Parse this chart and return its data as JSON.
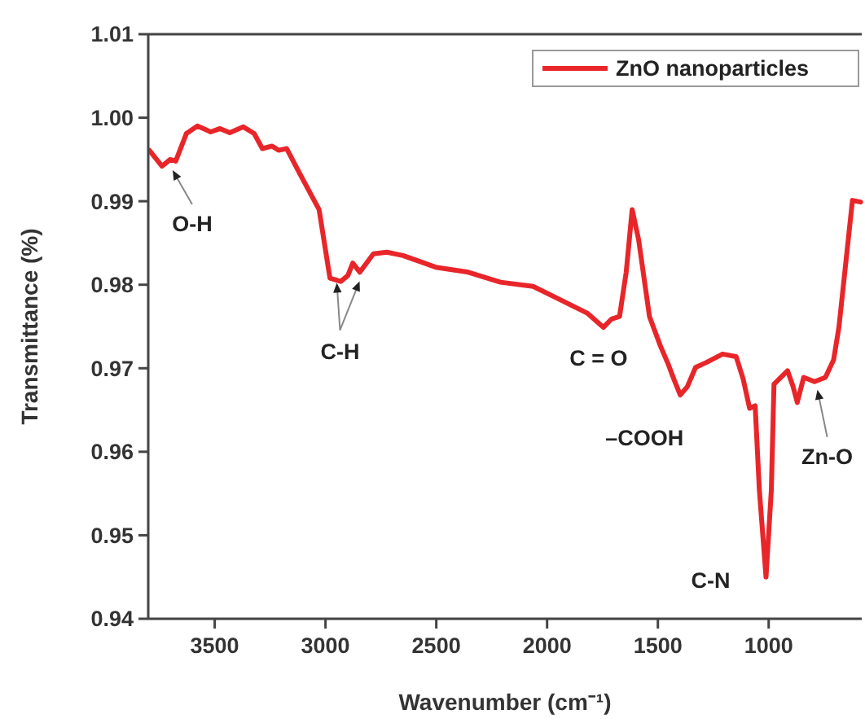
{
  "chart_data": {
    "type": "line",
    "xlabel": "Wavenumber (cm⁻¹)",
    "ylabel": "Transmittance (%)",
    "x": [
      3795,
      3738,
      3701,
      3676,
      3628,
      3578,
      3518,
      3476,
      3432,
      3371,
      3322,
      3285,
      3241,
      3212,
      3175,
      3114,
      3029,
      2980,
      2931,
      2899,
      2877,
      2845,
      2784,
      2723,
      2650,
      2503,
      2356,
      2210,
      2063,
      1941,
      1819,
      1746,
      1709,
      1673,
      1643,
      1616,
      1587,
      1538,
      1489,
      1452,
      1428,
      1399,
      1367,
      1330,
      1281,
      1208,
      1147,
      1115,
      1086,
      1061,
      1042,
      1012,
      988,
      976,
      915,
      890,
      871,
      842,
      793,
      744,
      707,
      683,
      646,
      622,
      585
    ],
    "series": [
      {
        "name": "ZnO nanoparticles",
        "color": "#e8262a",
        "values": [
          0.9961,
          0.9942,
          0.995,
          0.9948,
          0.9981,
          0.999,
          0.9983,
          0.9987,
          0.9982,
          0.9989,
          0.9981,
          0.9963,
          0.9966,
          0.9961,
          0.9963,
          0.9932,
          0.989,
          0.9808,
          0.9804,
          0.9811,
          0.9826,
          0.9815,
          0.9837,
          0.9839,
          0.9835,
          0.9821,
          0.9815,
          0.9803,
          0.9798,
          0.9782,
          0.9766,
          0.9749,
          0.9759,
          0.9762,
          0.9815,
          0.989,
          0.9854,
          0.9762,
          0.9727,
          0.9704,
          0.9687,
          0.9668,
          0.9678,
          0.9701,
          0.9707,
          0.9717,
          0.9714,
          0.9687,
          0.9652,
          0.9655,
          0.9554,
          0.945,
          0.9554,
          0.9681,
          0.9697,
          0.9678,
          0.9659,
          0.9689,
          0.9684,
          0.9689,
          0.971,
          0.9749,
          0.9841,
          0.9901,
          0.9899
        ]
      }
    ],
    "xlim": [
      3800,
      580
    ],
    "xticks": [
      3500,
      3000,
      2500,
      2000,
      1500,
      1000
    ],
    "ylim": [
      0.94,
      1.01
    ],
    "yticks": [
      0.94,
      0.95,
      0.96,
      0.97,
      0.98,
      0.99,
      {
        "value": 1,
        "label": "1.00"
      },
      1.01
    ],
    "legend": "top right",
    "grid": false,
    "marker": "none",
    "line_style": "solid",
    "annotations": [
      {
        "text": "O-H",
        "x": 3690,
        "y": 0.9943
      },
      {
        "text": "C-H",
        "x": 2905,
        "y": 0.981
      },
      {
        "text": "C = O",
        "x": 1746,
        "y": 0.9749
      },
      {
        "text": "–COOH",
        "x": 1399,
        "y": 0.9668
      },
      {
        "text": "C-N",
        "x": 1012,
        "y": 0.945
      },
      {
        "text": "Zn-O",
        "x": 780,
        "y": 0.968
      }
    ]
  }
}
